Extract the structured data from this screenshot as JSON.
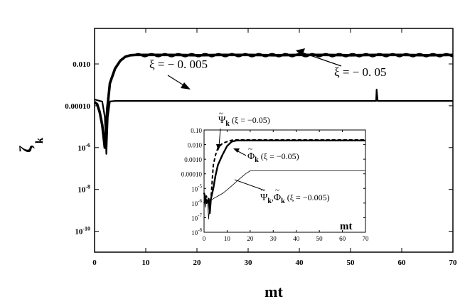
{
  "chart_data": [
    {
      "type": "line",
      "panel": "main",
      "xlabel": "mt",
      "ylabel": "ζk",
      "ylabel_sub": "k",
      "ylabel_main": "ζ",
      "xlim": [
        0,
        70
      ],
      "yscale": "log",
      "ylim": [
        1e-11,
        0.5
      ],
      "x_ticks": [
        "0",
        "10",
        "20",
        "30",
        "40",
        "50",
        "60",
        "70"
      ],
      "y_ticks": [
        {
          "value": 0.01,
          "label": "0.010"
        },
        {
          "value": 0.0001,
          "label": "0.00010"
        },
        {
          "value": 1e-06,
          "label": "10",
          "exp": "-6"
        },
        {
          "value": 1e-08,
          "label": "10",
          "exp": "-8"
        },
        {
          "value": 1e-10,
          "label": "10",
          "exp": "-10"
        }
      ],
      "series": [
        {
          "name": "ξ = − 0. 05",
          "style": "thick",
          "x": [
            0,
            0.5,
            1,
            1.5,
            2,
            2.5,
            3,
            4,
            5,
            6,
            7,
            8,
            10,
            15,
            20,
            25,
            30,
            35,
            40,
            45,
            50,
            55,
            60,
            65,
            70
          ],
          "y": [
            0.00015,
            0.00012,
            5e-05,
            1.2e-05,
            1e-06,
            8e-05,
            0.0012,
            0.006,
            0.014,
            0.022,
            0.026,
            0.027,
            0.027,
            0.027,
            0.026,
            0.027,
            0.027,
            0.026,
            0.027,
            0.027,
            0.026,
            0.027,
            0.027,
            0.026,
            0.027
          ]
        },
        {
          "name": "ξ = − 0. 005",
          "style": "medium",
          "x": [
            0,
            1,
            1.5,
            2,
            2.3,
            2.6,
            3,
            4,
            10,
            20,
            30,
            40,
            50,
            55,
            55.1,
            55.3,
            55.5,
            60,
            70
          ],
          "y": [
            0.0002,
            0.00017,
            0.00016,
            3e-05,
            5e-07,
            3e-05,
            0.00016,
            0.00017,
            0.00017,
            0.00017,
            0.00017,
            0.00017,
            0.00017,
            0.00017,
            0.0006,
            0.00017,
            0.00017,
            0.00017,
            0.00017
          ]
        }
      ],
      "annotations": [
        {
          "text": "ξ = − 0. 005"
        },
        {
          "text": "ξ = − 0. 05"
        }
      ]
    },
    {
      "type": "line",
      "panel": "inset",
      "xlabel": "mt",
      "xlim": [
        0,
        70
      ],
      "yscale": "log",
      "ylim": [
        1e-08,
        0.1
      ],
      "x_ticks": [
        "0",
        "10",
        "20",
        "30",
        "40",
        "50",
        "60",
        "70"
      ],
      "y_ticks": [
        {
          "value": 0.1,
          "label": "0.10"
        },
        {
          "value": 0.01,
          "label": "0.010"
        },
        {
          "value": 0.001,
          "label": "0.0010"
        },
        {
          "value": 0.0001,
          "label": "0.00010"
        },
        {
          "value": 1e-05,
          "label": "10",
          "exp": "-5"
        },
        {
          "value": 1e-06,
          "label": "10",
          "exp": "-6"
        },
        {
          "value": 1e-07,
          "label": "10",
          "exp": "-7"
        },
        {
          "value": 1e-08,
          "label": "10",
          "exp": "-8"
        }
      ],
      "series": [
        {
          "name": "Ψk (ξ = −0.05)",
          "style": "dashed",
          "x": [
            0,
            1,
            2,
            3,
            4,
            5,
            6,
            8,
            10,
            12,
            14,
            20,
            30,
            40,
            50,
            60,
            70
          ],
          "y": [
            1e-06,
            3e-06,
            1e-06,
            2e-06,
            0.0004,
            0.002,
            0.006,
            0.012,
            0.016,
            0.02,
            0.021,
            0.021,
            0.021,
            0.021,
            0.021,
            0.021,
            0.021
          ]
        },
        {
          "name": "Φk (ξ = −0.05)",
          "style": "thick",
          "x": [
            0,
            1,
            2,
            2.5,
            3,
            4,
            5,
            6,
            8,
            10,
            12,
            14,
            20,
            30,
            40,
            50,
            60,
            70
          ],
          "y": [
            5e-06,
            1e-06,
            2e-06,
            2e-07,
            2e-06,
            1e-05,
            8e-05,
            0.0004,
            0.002,
            0.008,
            0.016,
            0.019,
            0.019,
            0.019,
            0.019,
            0.019,
            0.019,
            0.019
          ]
        },
        {
          "name": "Ψk, Φk (ξ = −0.005)",
          "style": "thin",
          "x": [
            0,
            0.5,
            1,
            1.5,
            2,
            2.5,
            3,
            4,
            6,
            8,
            10,
            12,
            15,
            18,
            20,
            25,
            30,
            40,
            50,
            60,
            70
          ],
          "y": [
            3e-06,
            5e-07,
            2e-06,
            1e-06,
            8e-08,
            1e-06,
            1.5e-06,
            2e-06,
            3e-06,
            4.5e-06,
            8e-06,
            1.5e-05,
            4e-05,
            0.0001,
            0.00016,
            0.00016,
            0.00016,
            0.00016,
            0.00016,
            0.00016,
            0.00016
          ]
        }
      ],
      "annotations": [
        {
          "psi": "Ψ",
          "sub": "k",
          "tail": "(ξ = −0.05)"
        },
        {
          "phi": "Φ",
          "sub": "k",
          "tail": "(ξ = −0.05)"
        },
        {
          "psi": "Ψ",
          "phi": "Φ",
          "sub": "k",
          "tail": "(ξ = −0.005)"
        }
      ]
    }
  ]
}
